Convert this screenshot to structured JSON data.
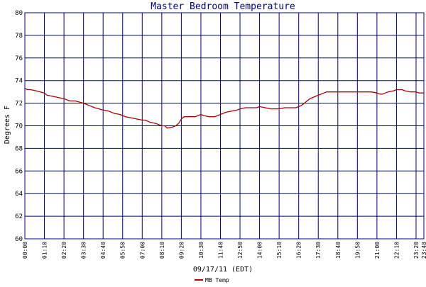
{
  "chart_data": {
    "type": "line",
    "title": "Master Bedroom Temperature",
    "xlabel": "09/17/11 (EDT)",
    "ylabel": "Degrees F",
    "ylim": [
      60,
      80
    ],
    "yticks": [
      60,
      62,
      64,
      66,
      68,
      70,
      72,
      74,
      76,
      78,
      80
    ],
    "xlim": [
      "00:00",
      "23:48"
    ],
    "xticks": [
      "00:00",
      "01:10",
      "02:20",
      "03:30",
      "04:40",
      "05:50",
      "07:00",
      "08:10",
      "09:20",
      "10:30",
      "11:40",
      "12:50",
      "14:00",
      "15:10",
      "16:20",
      "17:30",
      "18:40",
      "19:50",
      "21:00",
      "22:10",
      "23:20",
      "23:48"
    ],
    "grid": true,
    "legend_position": "bottom-left",
    "colors": {
      "series": "#aa0000",
      "grid": "#000080",
      "title": "#000080",
      "background": "#ffffff"
    },
    "series": [
      {
        "name": "MB Temp",
        "x": [
          "00:00",
          "00:10",
          "00:20",
          "00:40",
          "00:55",
          "01:10",
          "01:20",
          "01:40",
          "02:00",
          "02:20",
          "02:40",
          "03:00",
          "03:30",
          "03:50",
          "04:10",
          "04:40",
          "05:00",
          "05:20",
          "05:40",
          "06:00",
          "06:20",
          "06:40",
          "07:00",
          "07:10",
          "07:30",
          "07:50",
          "08:10",
          "08:20",
          "08:30",
          "08:50",
          "09:00",
          "09:10",
          "09:20",
          "09:30",
          "09:45",
          "10:10",
          "10:30",
          "10:40",
          "11:00",
          "11:20",
          "11:40",
          "12:00",
          "12:20",
          "12:40",
          "12:50",
          "13:10",
          "13:30",
          "13:50",
          "14:00",
          "14:20",
          "14:40",
          "15:00",
          "15:10",
          "15:30",
          "15:50",
          "16:10",
          "16:20",
          "16:30",
          "16:40",
          "16:50",
          "17:00",
          "17:10",
          "17:20",
          "17:30",
          "17:40",
          "17:50",
          "18:00",
          "18:20",
          "18:40",
          "19:00",
          "19:20",
          "19:50",
          "20:10",
          "20:30",
          "20:40",
          "21:00",
          "21:10",
          "21:20",
          "21:30",
          "21:40",
          "22:00",
          "22:10",
          "22:30",
          "22:40",
          "23:00",
          "23:20",
          "23:30",
          "23:48"
        ],
        "values": [
          73.3,
          73.2,
          73.2,
          73.1,
          73.0,
          72.9,
          72.7,
          72.6,
          72.5,
          72.4,
          72.2,
          72.2,
          72.0,
          71.8,
          71.6,
          71.4,
          71.3,
          71.1,
          71.0,
          70.8,
          70.7,
          70.6,
          70.5,
          70.5,
          70.3,
          70.2,
          70.0,
          70.0,
          69.8,
          69.9,
          70.0,
          70.2,
          70.6,
          70.8,
          70.8,
          70.8,
          71.0,
          70.9,
          70.8,
          70.8,
          71.0,
          71.2,
          71.3,
          71.4,
          71.5,
          71.6,
          71.6,
          71.6,
          71.7,
          71.6,
          71.5,
          71.5,
          71.5,
          71.6,
          71.6,
          71.6,
          71.7,
          71.8,
          72.0,
          72.2,
          72.4,
          72.5,
          72.6,
          72.7,
          72.8,
          72.9,
          73.0,
          73.0,
          73.0,
          73.0,
          73.0,
          73.0,
          73.0,
          73.0,
          73.0,
          72.9,
          72.8,
          72.8,
          72.9,
          73.0,
          73.1,
          73.2,
          73.2,
          73.1,
          73.0,
          73.0,
          72.9,
          72.9
        ]
      }
    ]
  }
}
